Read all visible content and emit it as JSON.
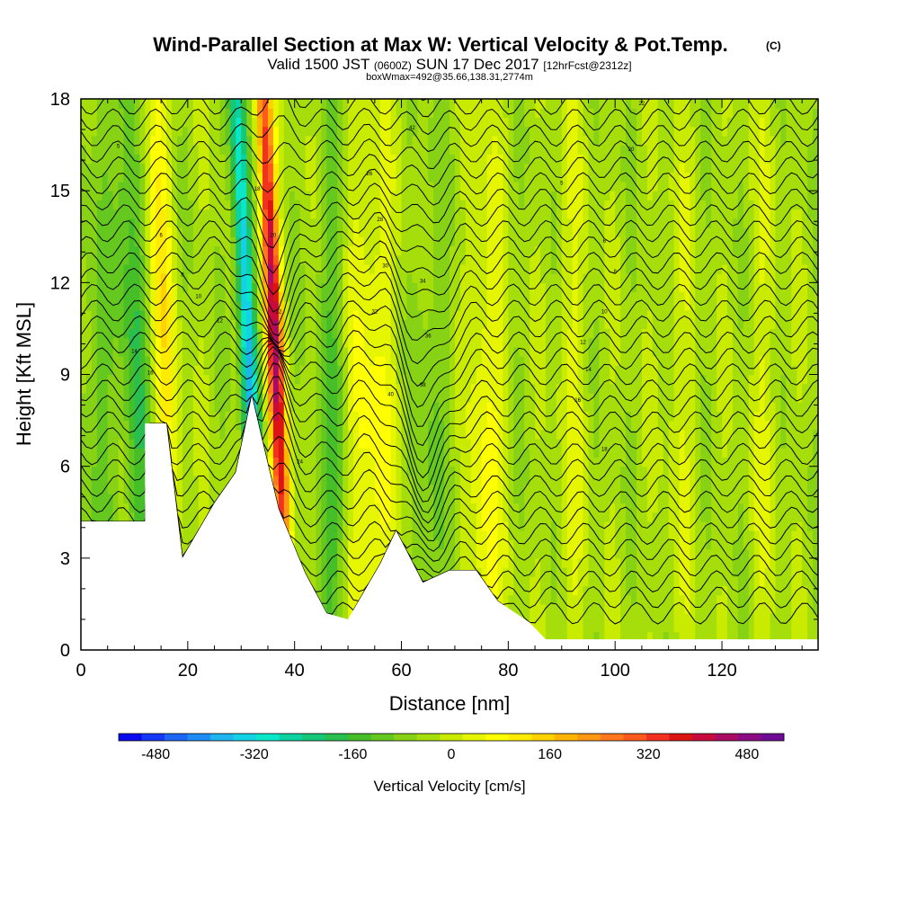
{
  "chart_data": {
    "type": "heatmap",
    "title": "Wind-Parallel Section at Max W: Vertical Velocity & Pot.Temp.",
    "title_mark": "(C)",
    "subtitle_parts": [
      "Valid 1500 JST",
      "(0600Z)",
      "SUN 17 Dec 2017",
      "[12hrFcst@2312z]"
    ],
    "subtitle2": "boxWmax=492@35.66,138.31,2774m",
    "xlabel": "Distance [nm]",
    "ylabel": "Height [Kft MSL]",
    "xlim": [
      0,
      138
    ],
    "ylim": [
      0,
      18
    ],
    "x_ticks": [
      0,
      20,
      40,
      60,
      80,
      100,
      120
    ],
    "y_ticks": [
      0,
      3,
      6,
      9,
      12,
      15,
      18
    ],
    "colorbar": {
      "title": "Vertical Velocity [cm/s]",
      "range": [
        -540,
        540
      ],
      "step": 40,
      "tick_values": [
        -480,
        -320,
        -160,
        0,
        160,
        320,
        480
      ],
      "colors": [
        "#0a0af0",
        "#1438f5",
        "#1e64f5",
        "#1e8cf5",
        "#1eb4f0",
        "#14d2e6",
        "#0ae6c8",
        "#0ad2a0",
        "#14c878",
        "#28be50",
        "#46be28",
        "#64c81e",
        "#87d214",
        "#a5de0a",
        "#c8eb00",
        "#e6f500",
        "#ffff00",
        "#ffeb00",
        "#ffd200",
        "#ffb400",
        "#ff9614",
        "#ff781e",
        "#ff5a1e",
        "#f0321e",
        "#dc1414",
        "#c80a3c",
        "#aa0a64",
        "#8c0a82",
        "#6e0a96"
      ]
    },
    "terrain": [
      [
        0,
        4.2
      ],
      [
        12,
        4.2
      ],
      [
        12,
        7.4
      ],
      [
        16,
        7.4
      ],
      [
        19,
        3.0
      ],
      [
        25,
        4.8
      ],
      [
        29,
        5.8
      ],
      [
        32,
        8.3
      ],
      [
        34,
        6.8
      ],
      [
        37,
        4.6
      ],
      [
        42,
        2.5
      ],
      [
        46,
        1.2
      ],
      [
        50,
        1.0
      ],
      [
        56,
        2.8
      ],
      [
        59,
        3.9
      ],
      [
        64,
        2.2
      ],
      [
        69,
        2.6
      ],
      [
        74,
        2.6
      ],
      [
        78,
        1.6
      ],
      [
        84,
        0.9
      ],
      [
        87,
        0.35
      ],
      [
        138,
        0.35
      ]
    ],
    "w_features": [
      {
        "x": 36,
        "h": 11,
        "w": 1.6,
        "amp": 500,
        "tilt": -0.26
      },
      {
        "x": 31,
        "h": 11,
        "w": 1.6,
        "amp": -360,
        "tilt": -0.26
      },
      {
        "x": 15,
        "h": 12,
        "w": 2.5,
        "amp": 150,
        "tilt": -0.22
      },
      {
        "x": 10,
        "h": 10,
        "w": 2.5,
        "amp": -150,
        "tilt": -0.15
      },
      {
        "x": 54,
        "h": 6,
        "w": 5,
        "amp": 120,
        "tilt": 0
      },
      {
        "x": 76,
        "h": 5,
        "w": 3,
        "amp": 120,
        "tilt": 0
      },
      {
        "x": 47,
        "h": 5,
        "w": 3,
        "amp": -120,
        "tilt": 0
      },
      {
        "x": 65,
        "h": 4,
        "w": 3,
        "amp": -70,
        "tilt": 0
      },
      {
        "x": 92,
        "h": 8,
        "w": 3,
        "amp": 60,
        "tilt": 0
      },
      {
        "x": 112,
        "h": 8,
        "w": 3,
        "amp": 50,
        "tilt": 0
      },
      {
        "x": 128,
        "h": 8,
        "w": 3,
        "amp": 50,
        "tilt": 0
      },
      {
        "x": 3,
        "h": 6,
        "w": 3,
        "amp": -80,
        "tilt": 0
      }
    ],
    "contour_label_values": [
      "5",
      "6",
      "8",
      "10",
      "12",
      "14",
      "16",
      "18",
      "20",
      "22",
      "24",
      "26",
      "28",
      "30",
      "32",
      "34",
      "36",
      "38",
      "40",
      "42"
    ]
  }
}
